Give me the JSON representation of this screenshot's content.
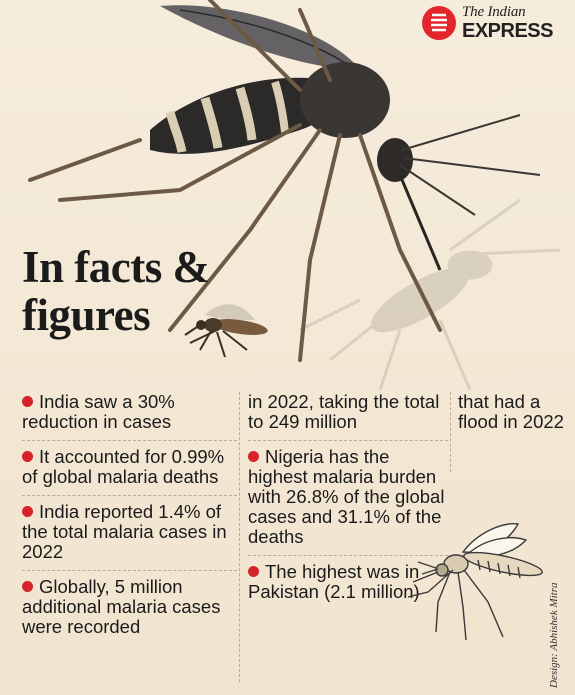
{
  "brand": {
    "line1": "The Indian",
    "line2": "EXPRESS"
  },
  "heading": {
    "line1": "In facts &",
    "line2": "figures"
  },
  "columns": [
    {
      "facts": [
        {
          "bullet": true,
          "text": "India saw a 30% reduction in cases"
        },
        {
          "bullet": true,
          "text": "It accounted for 0.99% of global malaria deaths"
        },
        {
          "bullet": true,
          "text": "India reported 1.4% of the total malaria cases in 2022"
        },
        {
          "bullet": true,
          "text": "Globally, 5 million additional malaria cases were recorded"
        }
      ]
    },
    {
      "facts": [
        {
          "bullet": false,
          "text": "in 2022, taking the total to 249 million"
        },
        {
          "bullet": true,
          "text": "Nigeria has the highest malaria burden with 26.8% of the global cases and 31.1% of the deaths"
        },
        {
          "bullet": true,
          "text": "The highest was in Pakistan (2.1 million)"
        }
      ]
    },
    {
      "facts": [
        {
          "bullet": false,
          "text": "that had a flood in 2022"
        }
      ]
    }
  ],
  "credit": "Design: Abhishek Mitra",
  "colors": {
    "accent": "#d6232a",
    "background": "#f3e7d4",
    "text": "#1b1b1b"
  }
}
